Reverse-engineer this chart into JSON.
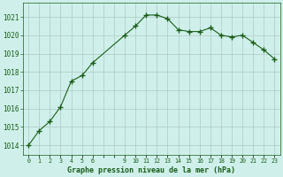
{
  "x": [
    0,
    1,
    2,
    3,
    4,
    5,
    6,
    9,
    10,
    11,
    12,
    13,
    14,
    15,
    16,
    17,
    18,
    19,
    20,
    21,
    22,
    23
  ],
  "y": [
    1014.0,
    1014.8,
    1015.3,
    1016.1,
    1017.5,
    1017.8,
    1018.5,
    1020.0,
    1020.5,
    1021.1,
    1021.1,
    1020.9,
    1020.3,
    1020.2,
    1020.2,
    1020.4,
    1020.0,
    1019.9,
    1020.0,
    1019.6,
    1019.2,
    1018.7
  ],
  "bg_color": "#cff0ea",
  "line_color": "#1a5c1a",
  "marker_color": "#1a5c1a",
  "grid_color": "#b0c8c4",
  "xlabel": "Graphe pression niveau de la mer (hPa)",
  "xlabel_color": "#1a5c1a",
  "tick_color": "#1a5c1a",
  "ylim": [
    1013.5,
    1021.75
  ],
  "xlim": [
    -0.5,
    23.5
  ],
  "yticks": [
    1014,
    1015,
    1016,
    1017,
    1018,
    1019,
    1020,
    1021
  ],
  "xtick_labels": [
    "0",
    "1",
    "2",
    "3",
    "4",
    "5",
    "6",
    "",
    "",
    "9",
    "10",
    "11",
    "12",
    "13",
    "14",
    "15",
    "16",
    "17",
    "18",
    "19",
    "20",
    "21",
    "22",
    "23"
  ],
  "xtick_positions": [
    0,
    1,
    2,
    3,
    4,
    5,
    6,
    7,
    8,
    9,
    10,
    11,
    12,
    13,
    14,
    15,
    16,
    17,
    18,
    19,
    20,
    21,
    22,
    23
  ]
}
